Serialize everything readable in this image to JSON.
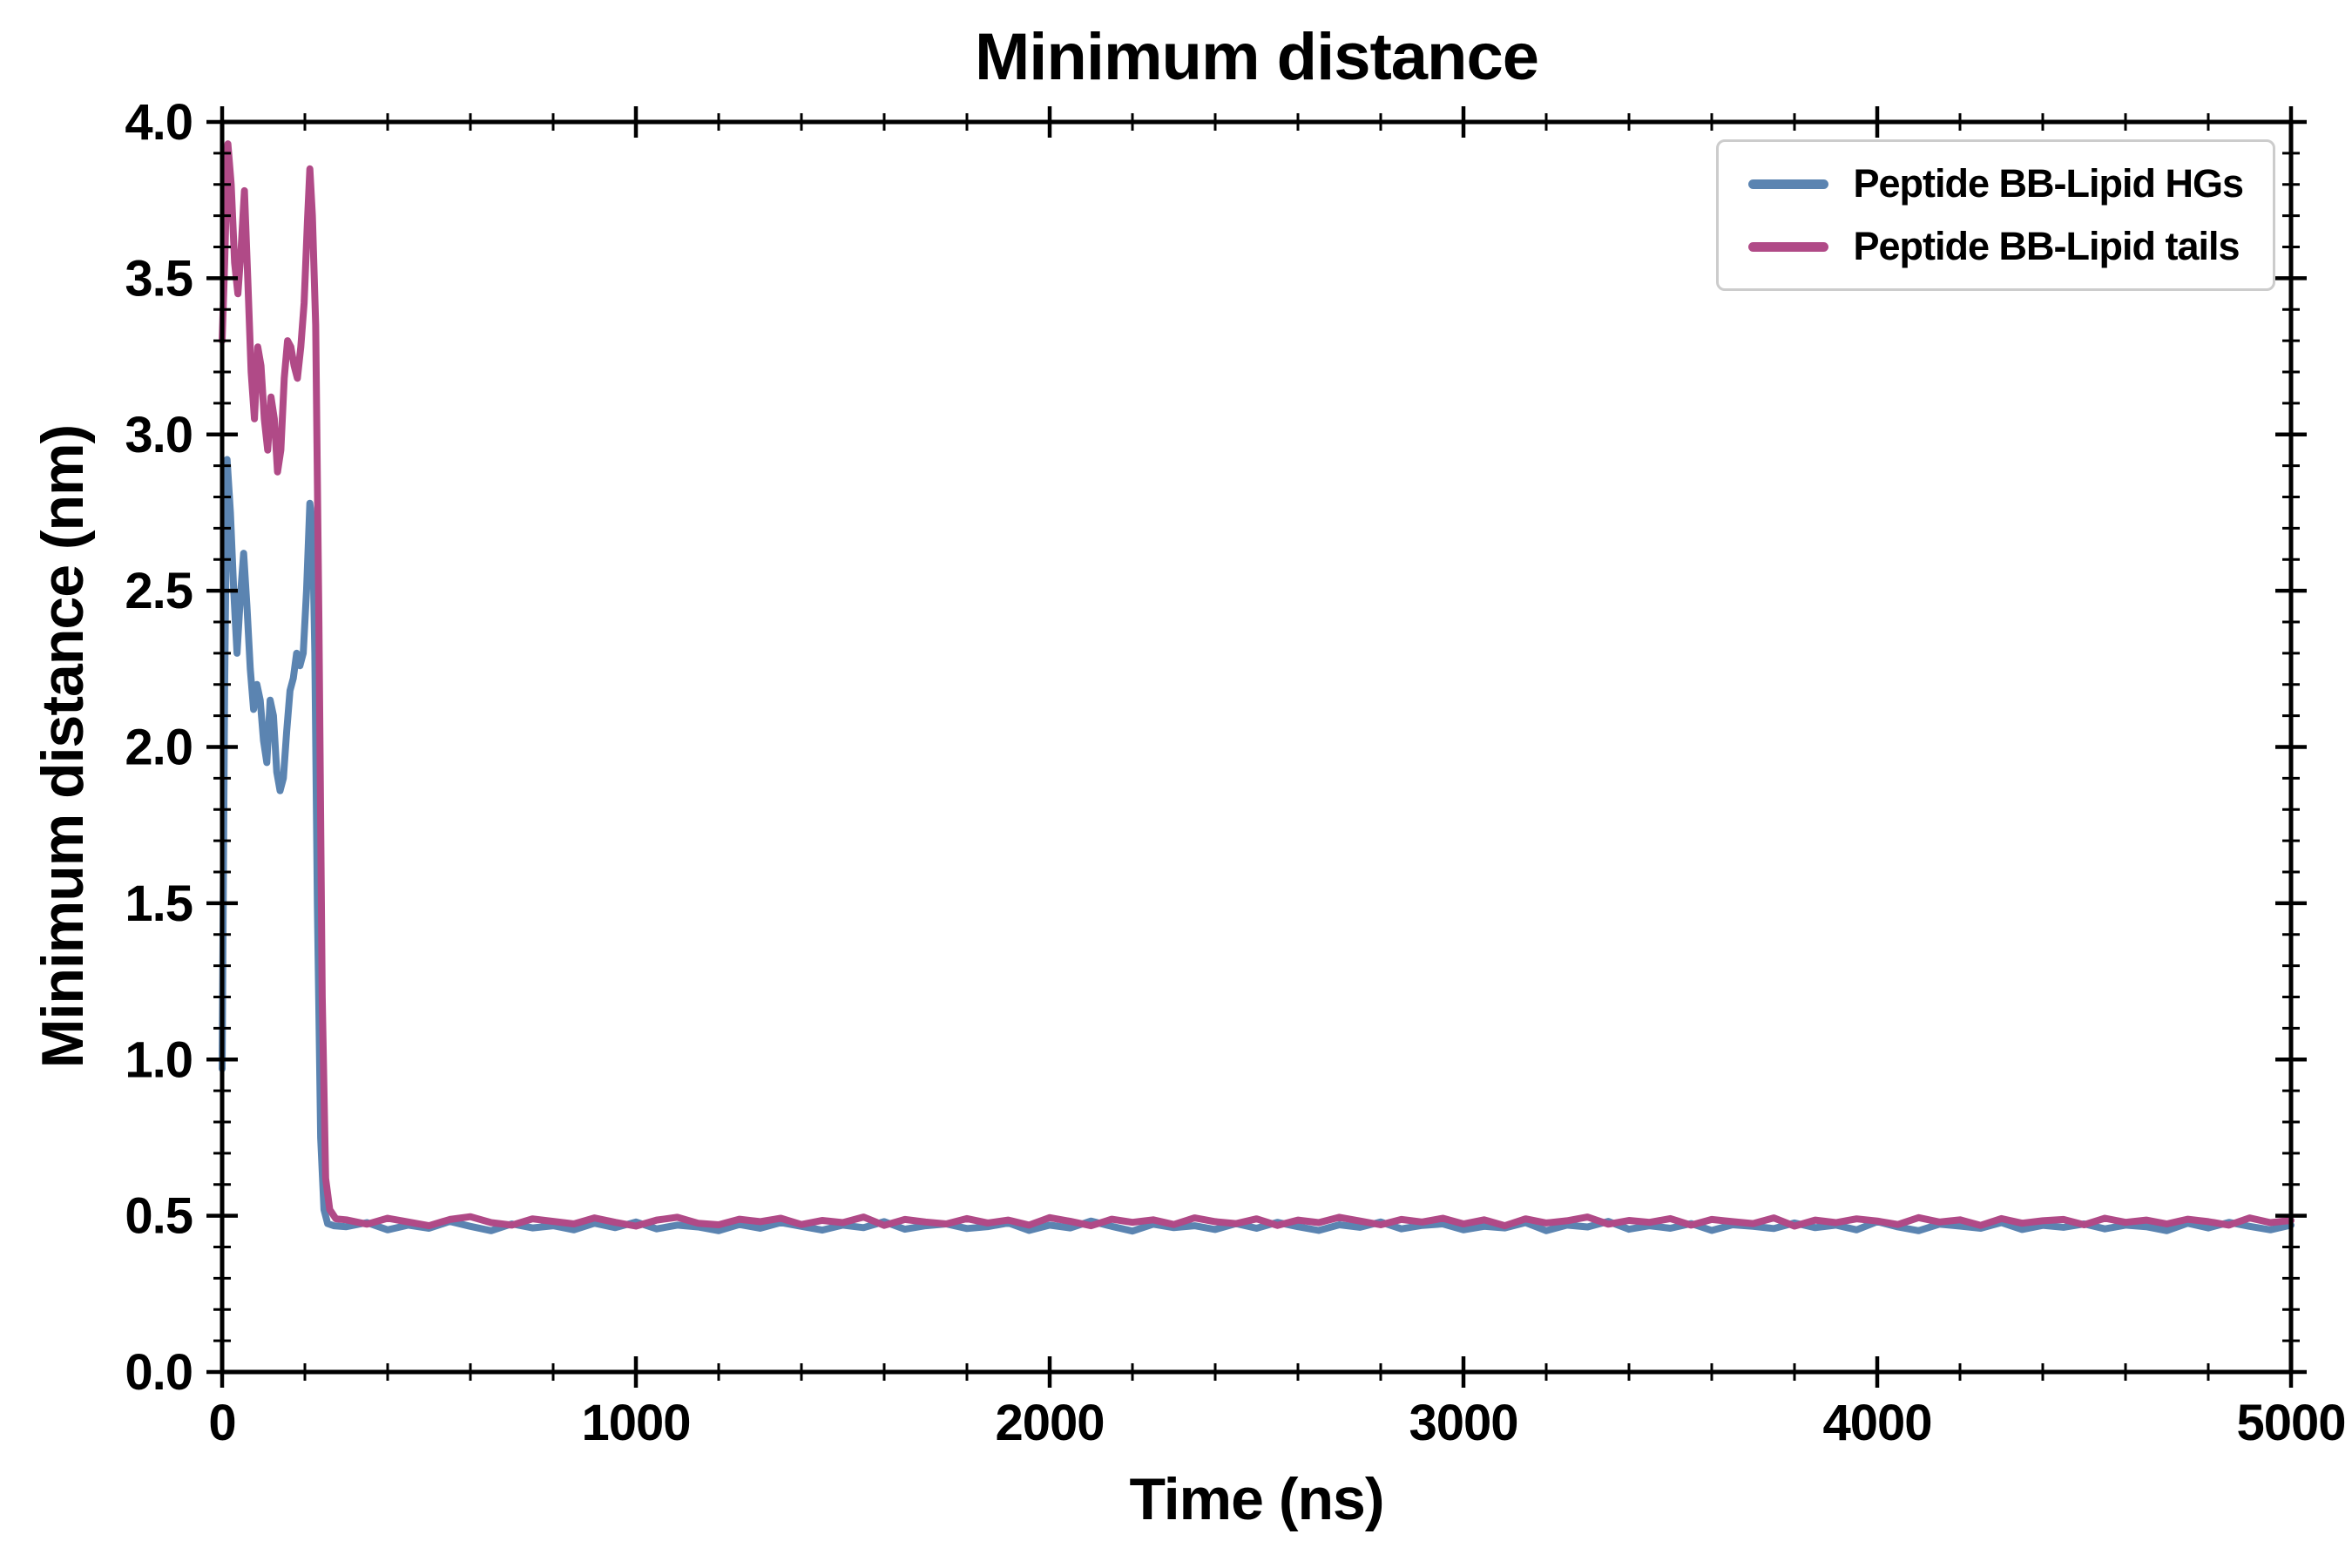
{
  "chart_data": {
    "type": "line",
    "title": "Minimum distance",
    "xlabel": "Time (ns)",
    "ylabel": "Minimum distance (nm)",
    "xlim": [
      0,
      5000
    ],
    "ylim": [
      0.0,
      4.0
    ],
    "xticks": [
      0,
      1000,
      2000,
      3000,
      4000,
      5000
    ],
    "xtick_labels": [
      "0",
      "1000",
      "2000",
      "3000",
      "4000",
      "5000"
    ],
    "x_minor_step": 200,
    "yticks": [
      0.0,
      0.5,
      1.0,
      1.5,
      2.0,
      2.5,
      3.0,
      3.5,
      4.0
    ],
    "ytick_labels": [
      "0.0",
      "0.5",
      "1.0",
      "1.5",
      "2.0",
      "2.5",
      "3.0",
      "3.5",
      "4.0"
    ],
    "y_minor_step": 0.1,
    "grid": false,
    "legend_position": "upper right",
    "axis_color": "#000000",
    "series": [
      {
        "name": "Peptide BB-Lipid HGs",
        "color": "#5b84b1",
        "early_points": [
          [
            0,
            0.97
          ],
          [
            6,
            2.2
          ],
          [
            12,
            2.92
          ],
          [
            20,
            2.75
          ],
          [
            28,
            2.5
          ],
          [
            36,
            2.3
          ],
          [
            44,
            2.48
          ],
          [
            52,
            2.62
          ],
          [
            60,
            2.45
          ],
          [
            68,
            2.25
          ],
          [
            76,
            2.12
          ],
          [
            84,
            2.2
          ],
          [
            92,
            2.15
          ],
          [
            100,
            2.02
          ],
          [
            108,
            1.95
          ],
          [
            116,
            2.15
          ],
          [
            124,
            2.1
          ],
          [
            132,
            1.92
          ],
          [
            140,
            1.86
          ],
          [
            148,
            1.9
          ],
          [
            156,
            2.05
          ],
          [
            164,
            2.18
          ],
          [
            172,
            2.22
          ],
          [
            180,
            2.3
          ],
          [
            188,
            2.26
          ],
          [
            196,
            2.3
          ],
          [
            204,
            2.5
          ],
          [
            212,
            2.78
          ],
          [
            218,
            2.72
          ],
          [
            224,
            2.3
          ],
          [
            230,
            1.5
          ],
          [
            238,
            0.75
          ],
          [
            246,
            0.52
          ],
          [
            255,
            0.475
          ],
          [
            270,
            0.468
          ]
        ],
        "flat_from": 300,
        "flat_step": 50,
        "flat_values": [
          0.465,
          0.478,
          0.455,
          0.47,
          0.46,
          0.482,
          0.466,
          0.452,
          0.474,
          0.461,
          0.468,
          0.455,
          0.476,
          0.462,
          0.48,
          0.458,
          0.47,
          0.464,
          0.452,
          0.472,
          0.46,
          0.478,
          0.466,
          0.454,
          0.47,
          0.462,
          0.481,
          0.457,
          0.468,
          0.474,
          0.459,
          0.465,
          0.477,
          0.453,
          0.47,
          0.461,
          0.483,
          0.466,
          0.451,
          0.473,
          0.462,
          0.468,
          0.456,
          0.475,
          0.46,
          0.479,
          0.465,
          0.453,
          0.471,
          0.463,
          0.48,
          0.458,
          0.469,
          0.474,
          0.455,
          0.466,
          0.461,
          0.478,
          0.452,
          0.47,
          0.464,
          0.482,
          0.457,
          0.468,
          0.46,
          0.475,
          0.453,
          0.471,
          0.466,
          0.459,
          0.477,
          0.462,
          0.47,
          0.455,
          0.481,
          0.464,
          0.452,
          0.473,
          0.467,
          0.46,
          0.478,
          0.456,
          0.469,
          0.463,
          0.474,
          0.458,
          0.47,
          0.465,
          0.452,
          0.476,
          0.461,
          0.479,
          0.466,
          0.455,
          0.47
        ]
      },
      {
        "name": "Peptide BB-Lipid tails",
        "color": "#b04a87",
        "early_points": [
          [
            0,
            3.3
          ],
          [
            6,
            3.55
          ],
          [
            14,
            3.93
          ],
          [
            22,
            3.8
          ],
          [
            30,
            3.55
          ],
          [
            38,
            3.45
          ],
          [
            46,
            3.6
          ],
          [
            54,
            3.78
          ],
          [
            62,
            3.5
          ],
          [
            70,
            3.2
          ],
          [
            78,
            3.05
          ],
          [
            86,
            3.28
          ],
          [
            94,
            3.22
          ],
          [
            102,
            3.05
          ],
          [
            110,
            2.95
          ],
          [
            118,
            3.12
          ],
          [
            126,
            3.05
          ],
          [
            134,
            2.88
          ],
          [
            142,
            2.95
          ],
          [
            150,
            3.18
          ],
          [
            158,
            3.3
          ],
          [
            166,
            3.28
          ],
          [
            174,
            3.22
          ],
          [
            182,
            3.18
          ],
          [
            190,
            3.28
          ],
          [
            198,
            3.42
          ],
          [
            206,
            3.68
          ],
          [
            212,
            3.85
          ],
          [
            218,
            3.7
          ],
          [
            226,
            3.35
          ],
          [
            234,
            2.4
          ],
          [
            242,
            1.2
          ],
          [
            250,
            0.62
          ],
          [
            260,
            0.52
          ],
          [
            275,
            0.49
          ]
        ],
        "flat_from": 300,
        "flat_step": 50,
        "flat_values": [
          0.487,
          0.473,
          0.492,
          0.48,
          0.468,
          0.488,
          0.497,
          0.478,
          0.47,
          0.49,
          0.482,
          0.474,
          0.493,
          0.479,
          0.467,
          0.486,
          0.495,
          0.476,
          0.471,
          0.489,
          0.481,
          0.492,
          0.472,
          0.485,
          0.478,
          0.496,
          0.469,
          0.488,
          0.48,
          0.474,
          0.491,
          0.477,
          0.486,
          0.47,
          0.494,
          0.482,
          0.468,
          0.489,
          0.479,
          0.487,
          0.472,
          0.493,
          0.481,
          0.475,
          0.49,
          0.469,
          0.486,
          0.478,
          0.495,
          0.483,
          0.471,
          0.488,
          0.48,
          0.492,
          0.474,
          0.487,
          0.468,
          0.49,
          0.477,
          0.484,
          0.496,
          0.473,
          0.485,
          0.479,
          0.491,
          0.47,
          0.488,
          0.481,
          0.475,
          0.493,
          0.467,
          0.486,
          0.478,
          0.49,
          0.483,
          0.472,
          0.494,
          0.48,
          0.487,
          0.469,
          0.491,
          0.476,
          0.484,
          0.488,
          0.471,
          0.492,
          0.479,
          0.486,
          0.474,
          0.489,
          0.481,
          0.47,
          0.493,
          0.478,
          0.485
        ]
      }
    ]
  }
}
